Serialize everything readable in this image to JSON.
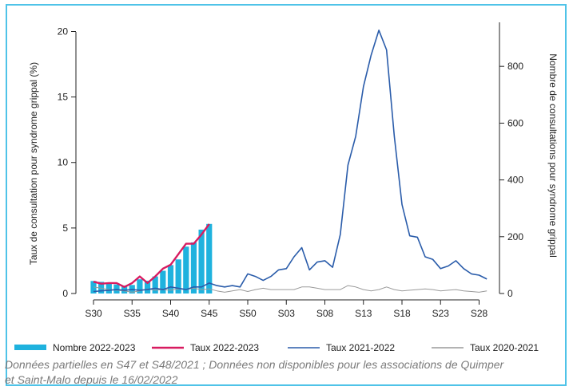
{
  "chart_data": {
    "type": "bar+line",
    "x_tick_labels": [
      "S30",
      "S35",
      "S40",
      "S45",
      "S50",
      "S03",
      "S08",
      "S13",
      "S18",
      "S23",
      "S28"
    ],
    "y_left_label": "Taux de consultation pour syndrome grippal (%)",
    "y_right_label": "Nombre de consultations pour syndrome grippal",
    "y_left_ticks": [
      0,
      5,
      10,
      15,
      20
    ],
    "y_right_ticks": [
      0,
      200,
      400,
      600,
      800
    ],
    "y_left_lim": [
      0,
      20.7
    ],
    "y_right_lim": [
      0,
      955
    ],
    "grid": false,
    "legend_position": "bottom",
    "bars": {
      "name": "Nombre 2022-2023",
      "color": "#1fb2de",
      "axis": "right",
      "x": [
        0,
        1,
        2,
        3,
        4,
        5,
        6,
        7,
        8,
        9,
        10,
        11,
        12,
        13,
        14,
        15
      ],
      "values": [
        44,
        41,
        36,
        32,
        28,
        30,
        50,
        45,
        60,
        80,
        100,
        120,
        165,
        180,
        225,
        245
      ]
    },
    "series": [
      {
        "name": "Taux 2022-2023",
        "color": "#d81b60",
        "axis": "left",
        "x": [
          0,
          1,
          2,
          3,
          4,
          5,
          6,
          7,
          8,
          9,
          10,
          11,
          12,
          13,
          14,
          15
        ],
        "values": [
          0.9,
          0.75,
          0.8,
          0.8,
          0.5,
          0.8,
          1.3,
          0.8,
          1.3,
          1.9,
          2.2,
          3.0,
          3.8,
          3.8,
          4.5,
          5.3
        ]
      },
      {
        "name": "Taux 2021-2022",
        "color": "#2a5caa",
        "axis": "left",
        "x": [
          0,
          1,
          2,
          3,
          4,
          5,
          6,
          7,
          8,
          9,
          10,
          11,
          12,
          13,
          14,
          15,
          16,
          17,
          18,
          19,
          20,
          21,
          22,
          23,
          24,
          25,
          26,
          27,
          28,
          29,
          30,
          31,
          32,
          33,
          34,
          35,
          36,
          37,
          38,
          39,
          40,
          41,
          42,
          43,
          44,
          45,
          46,
          47,
          48,
          49,
          50,
          51
        ],
        "values": [
          0.15,
          0.2,
          0.25,
          0.3,
          0.25,
          0.3,
          0.25,
          0.3,
          0.4,
          0.3,
          0.5,
          0.4,
          0.3,
          0.5,
          0.5,
          0.8,
          0.6,
          0.5,
          0.6,
          0.5,
          1.5,
          1.3,
          1.0,
          1.3,
          1.8,
          1.9,
          2.8,
          3.5,
          1.8,
          2.4,
          2.5,
          2.0,
          4.5,
          9.8,
          12.0,
          15.8,
          18.2,
          20.1,
          18.6,
          12.0,
          6.8,
          4.4,
          4.3,
          2.8,
          2.6,
          1.9,
          2.1,
          2.5,
          1.9,
          1.5,
          1.4,
          1.1
        ]
      },
      {
        "name": "Taux 2020-2021",
        "color": "#9a9a9a",
        "axis": "left",
        "x": [
          0,
          1,
          2,
          3,
          4,
          5,
          6,
          7,
          8,
          9,
          10,
          11,
          12,
          13,
          14,
          15,
          16,
          17,
          18,
          19,
          20,
          21,
          22,
          23,
          24,
          25,
          26,
          27,
          28,
          29,
          30,
          31,
          32,
          33,
          34,
          35,
          36,
          37,
          38,
          39,
          40,
          41,
          42,
          43,
          44,
          45,
          46,
          47,
          48,
          49,
          50,
          51
        ],
        "values": [
          0.5,
          0.4,
          0.3,
          0.25,
          0.2,
          0.1,
          0.2,
          0.35,
          0.25,
          0.3,
          0.25,
          0.35,
          0.3,
          0.4,
          0.3,
          0.35,
          0.2,
          0.1,
          0.2,
          0.3,
          0.15,
          0.3,
          0.4,
          0.3,
          0.3,
          0.3,
          0.3,
          0.5,
          0.5,
          0.4,
          0.3,
          0.3,
          0.3,
          0.6,
          0.5,
          0.3,
          0.2,
          0.3,
          0.5,
          0.3,
          0.2,
          0.25,
          0.3,
          0.35,
          0.3,
          0.2,
          0.25,
          0.3,
          0.2,
          0.15,
          0.1,
          0.2
        ]
      }
    ],
    "tick_index": [
      0,
      5,
      10,
      15,
      20,
      25,
      30,
      35,
      40,
      45,
      50
    ],
    "x_count": 52,
    "legend": [
      {
        "label": "Nombre 2022-2023",
        "kind": "bar",
        "color": "#1fb2de"
      },
      {
        "label": "Taux 2022-2023",
        "kind": "line",
        "color": "#d81b60"
      },
      {
        "label": "Taux 2021-2022",
        "kind": "line",
        "color": "#2a5caa"
      },
      {
        "label": "Taux 2020-2021",
        "kind": "line",
        "color": "#9a9a9a"
      }
    ]
  },
  "note": {
    "line1": "Données partielles en S47 et S48/2021 ; Données non disponibles pour les associations de Quimper",
    "line2": "et Saint-Malo depuis le 16/02/2022"
  }
}
